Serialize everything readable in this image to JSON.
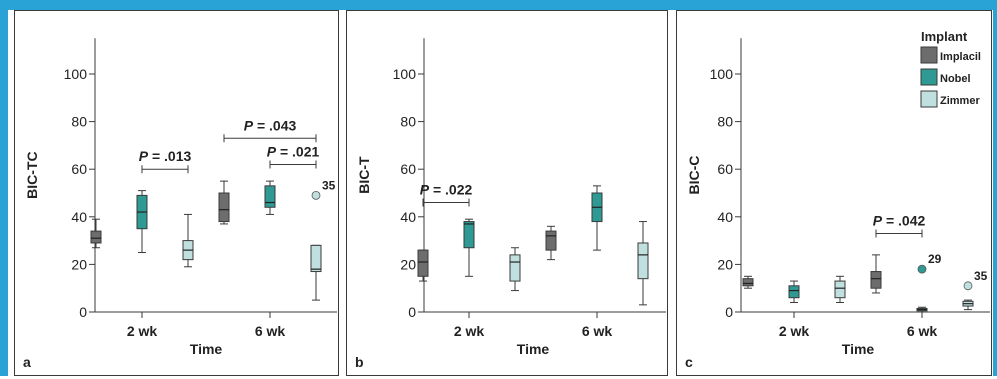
{
  "legend": {
    "title": "Implant",
    "items": [
      {
        "name": "Implacil",
        "color": "#6d6d6d"
      },
      {
        "name": "Nobel",
        "color": "#2e9a93"
      },
      {
        "name": "Zimmer",
        "color": "#bfe0de"
      }
    ]
  },
  "chart_data": [
    {
      "type": "box",
      "panel_label": "a",
      "ylabel": "BIC-TC",
      "xlabel": "Time",
      "categories": [
        "2 wk",
        "6 wk"
      ],
      "ylim": [
        0,
        110
      ],
      "yticks": [
        0,
        20,
        40,
        60,
        80,
        100
      ],
      "series": [
        {
          "name": "Implacil",
          "boxes": [
            {
              "min": 27,
              "q1": 29,
              "median": 31,
              "q3": 34,
              "max": 39
            },
            {
              "min": 37,
              "q1": 38,
              "median": 43,
              "q3": 50,
              "max": 55
            }
          ]
        },
        {
          "name": "Nobel",
          "boxes": [
            {
              "min": 25,
              "q1": 35,
              "median": 42,
              "q3": 49,
              "max": 51
            },
            {
              "min": 41,
              "q1": 44,
              "median": 46,
              "q3": 53,
              "max": 55
            }
          ]
        },
        {
          "name": "Zimmer",
          "boxes": [
            {
              "min": 19,
              "q1": 22,
              "median": 26,
              "q3": 30,
              "max": 41
            },
            {
              "min": 5,
              "q1": 17,
              "median": 18,
              "q3": 28,
              "max": 28
            }
          ]
        }
      ],
      "outliers": [
        {
          "category": 1,
          "series": 2,
          "value": 49,
          "label": "35"
        }
      ],
      "annotations": [
        {
          "prefix": "P",
          "text": " = .013",
          "category": 0,
          "from": 1,
          "to": 2,
          "y": 60
        },
        {
          "prefix": "P",
          "text": " = .043",
          "category": 1,
          "from": 0,
          "to": 2,
          "y": 73
        },
        {
          "prefix": "P",
          "text": " = .021",
          "category": 1,
          "from": 1,
          "to": 2,
          "y": 62
        }
      ]
    },
    {
      "type": "box",
      "panel_label": "b",
      "ylabel": "BIC-T",
      "xlabel": "Time",
      "categories": [
        "2 wk",
        "6 wk"
      ],
      "ylim": [
        0,
        110
      ],
      "yticks": [
        0,
        20,
        40,
        60,
        80,
        100
      ],
      "series": [
        {
          "name": "Implacil",
          "boxes": [
            {
              "min": 13,
              "q1": 15,
              "median": 21,
              "q3": 26,
              "max": 26
            },
            {
              "min": 22,
              "q1": 26,
              "median": 32,
              "q3": 34,
              "max": 36
            }
          ]
        },
        {
          "name": "Nobel",
          "boxes": [
            {
              "min": 15,
              "q1": 27,
              "median": 37,
              "q3": 38,
              "max": 39
            },
            {
              "min": 26,
              "q1": 38,
              "median": 44,
              "q3": 50,
              "max": 53
            }
          ]
        },
        {
          "name": "Zimmer",
          "boxes": [
            {
              "min": 9,
              "q1": 13,
              "median": 21,
              "q3": 24,
              "max": 27
            },
            {
              "min": 3,
              "q1": 14,
              "median": 24,
              "q3": 29,
              "max": 38
            }
          ]
        }
      ],
      "outliers": [],
      "annotations": [
        {
          "prefix": "P",
          "text": " = .022",
          "category": 0,
          "from": 0,
          "to": 1,
          "y": 46
        }
      ]
    },
    {
      "type": "box",
      "panel_label": "c",
      "ylabel": "BIC-C",
      "xlabel": "Time",
      "categories": [
        "2 wk",
        "6 wk"
      ],
      "ylim": [
        0,
        110
      ],
      "yticks": [
        0,
        20,
        40,
        60,
        80,
        100
      ],
      "series": [
        {
          "name": "Implacil",
          "boxes": [
            {
              "min": 10,
              "q1": 11,
              "median": 12,
              "q3": 14,
              "max": 15
            },
            {
              "min": 8,
              "q1": 10,
              "median": 14,
              "q3": 17,
              "max": 24
            }
          ]
        },
        {
          "name": "Nobel",
          "boxes": [
            {
              "min": 4,
              "q1": 6,
              "median": 9,
              "q3": 11,
              "max": 13
            },
            {
              "min": 0,
              "q1": 0.5,
              "median": 1,
              "q3": 1.5,
              "max": 2
            }
          ]
        },
        {
          "name": "Zimmer",
          "boxes": [
            {
              "min": 4,
              "q1": 6,
              "median": 10,
              "q3": 13,
              "max": 15
            },
            {
              "min": 1,
              "q1": 2.5,
              "median": 3.5,
              "q3": 4.5,
              "max": 5
            }
          ]
        }
      ],
      "outliers": [
        {
          "category": 1,
          "series": 1,
          "value": 18,
          "label": "29"
        },
        {
          "category": 1,
          "series": 2,
          "value": 11,
          "label": "35"
        }
      ],
      "annotations": [
        {
          "prefix": "P",
          "text": " = .042",
          "category": 1,
          "from": 0,
          "to": 1,
          "y": 33
        }
      ]
    }
  ]
}
